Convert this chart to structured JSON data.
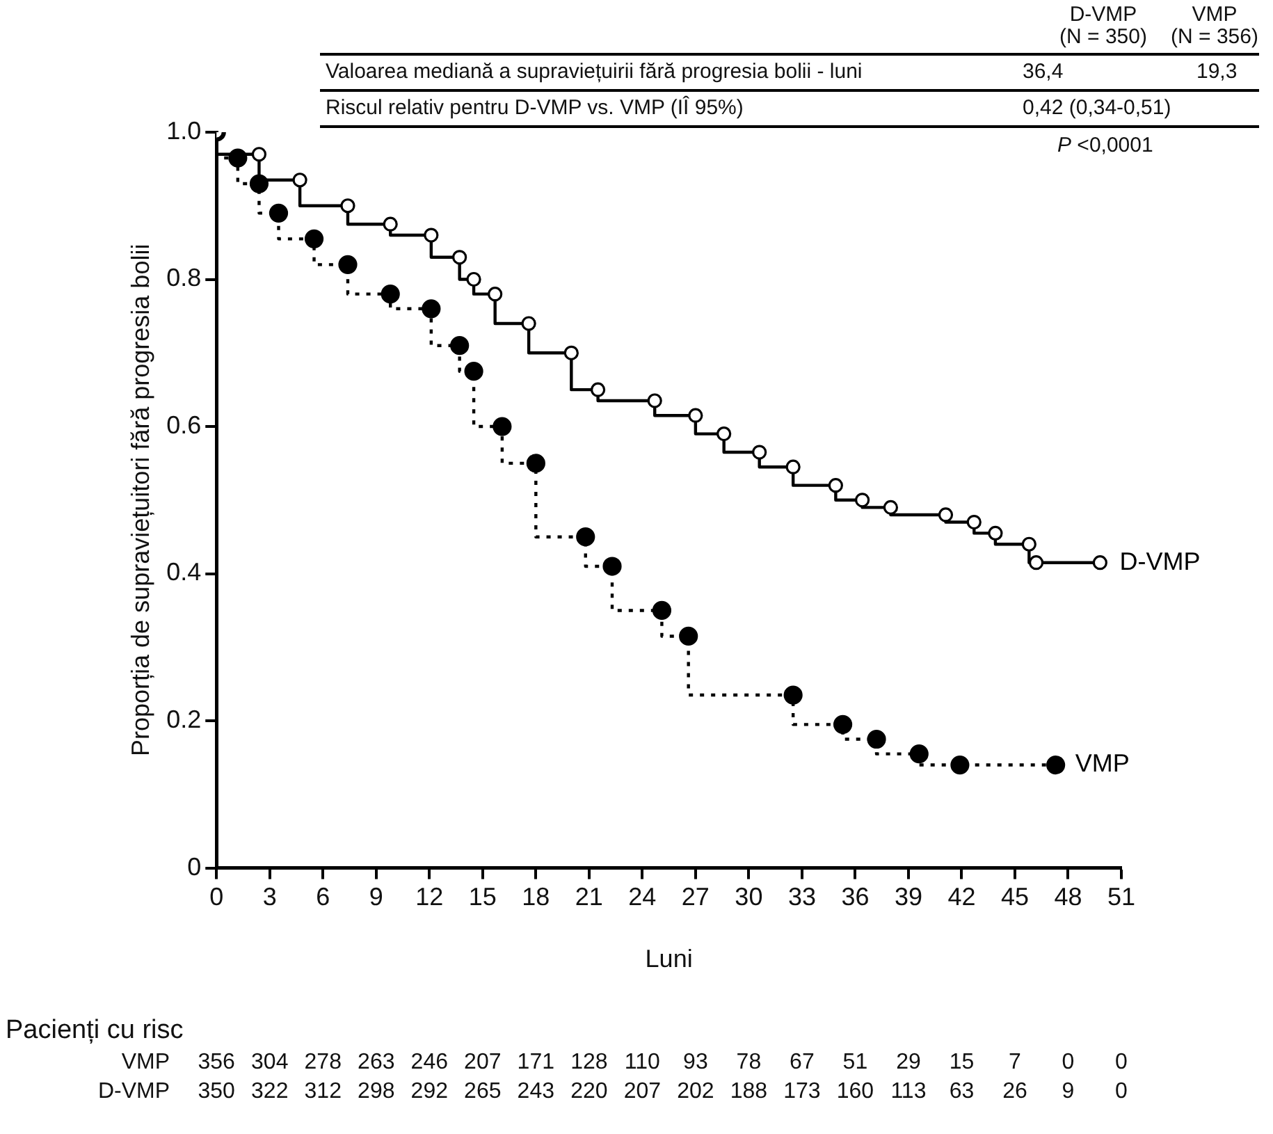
{
  "chart_data": {
    "type": "step",
    "xlabel": "Luni",
    "ylabel": "Proporția de supraviețuitori fără progresia bolii",
    "xlim": [
      0,
      51
    ],
    "xticks": [
      0,
      3,
      6,
      9,
      12,
      15,
      18,
      21,
      24,
      27,
      30,
      33,
      36,
      39,
      42,
      45,
      48,
      51
    ],
    "ylim": [
      0,
      1
    ],
    "yticks": [
      {
        "value": 0,
        "label": "0"
      },
      {
        "value": 0.2,
        "label": "0.2"
      },
      {
        "value": 0.4,
        "label": "0.4"
      },
      {
        "value": 0.6,
        "label": "0.6"
      },
      {
        "value": 0.8,
        "label": "0.8"
      },
      {
        "value": 1,
        "label": "1.0"
      }
    ],
    "grid": false,
    "legend": false,
    "marker": "circle",
    "series": [
      {
        "name": "D-VMP",
        "color": "#000000",
        "line_style": "solid",
        "x": [
          0,
          2.4,
          4.7,
          7.4,
          9.8,
          12.1,
          13.7,
          14.5,
          15.7,
          17.6,
          20,
          21.5,
          24.7,
          27,
          28.6,
          30.6,
          32.5,
          34.9,
          36.4,
          38,
          41.1,
          42.7,
          43.9,
          45.8,
          46.2,
          49.8
        ],
        "values": [
          1,
          0.97,
          0.935,
          0.9,
          0.875,
          0.86,
          0.83,
          0.8,
          0.78,
          0.74,
          0.7,
          0.65,
          0.635,
          0.615,
          0.59,
          0.565,
          0.545,
          0.52,
          0.5,
          0.49,
          0.48,
          0.47,
          0.455,
          0.44,
          0.415,
          0.415
        ]
      },
      {
        "name": "VMP",
        "color": "#000000",
        "line_style": "dotted",
        "x": [
          0,
          1.2,
          2.4,
          3.5,
          5.5,
          7.4,
          9.8,
          12.1,
          13.7,
          14.5,
          16.1,
          18,
          20.8,
          22.3,
          25.1,
          26.6,
          32.5,
          35.3,
          37.2,
          39.6,
          41.9,
          47.3
        ],
        "values": [
          1,
          0.965,
          0.93,
          0.89,
          0.855,
          0.82,
          0.78,
          0.76,
          0.71,
          0.675,
          0.6,
          0.55,
          0.45,
          0.41,
          0.35,
          0.315,
          0.235,
          0.195,
          0.175,
          0.155,
          0.14,
          0.14
        ]
      }
    ],
    "annotations": [
      "D-VMP",
      "(N = 350)",
      "VMP",
      "(N = 356)",
      "Valoarea mediană a supraviețuirii fără progresia bolii - luni",
      "36,4",
      "19,3",
      "Riscul relativ pentru D-VMP vs. VMP (IÎ 95%)",
      "0,42 (0,34-0,51)",
      "P <0,0001",
      "Pacienți cu risc",
      "VMP 356 304 278 263 246 207 171 128 110 93 78 67 51 29 15 7 0 0",
      "D-VMP 350 322 312 298 292 265 243 220 207 202 188 173 160 113 63 26 9 0"
    ]
  }
}
